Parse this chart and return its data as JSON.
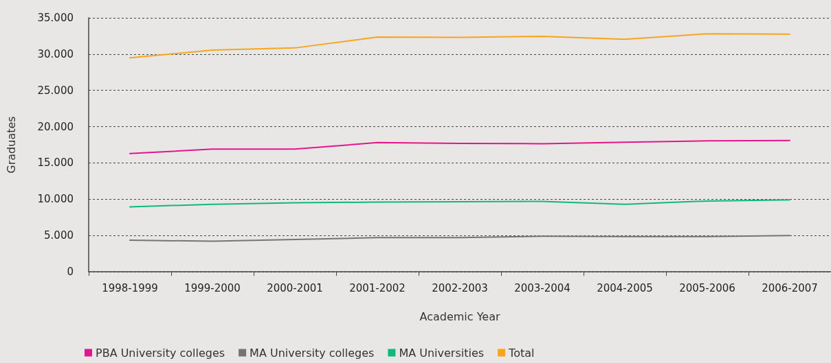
{
  "chart_data": {
    "type": "line",
    "xlabel": "Academic Year",
    "ylabel": "Graduates",
    "categories": [
      "1998-1999",
      "1999-2000",
      "2000-2001",
      "2001-2002",
      "2002-2003",
      "2003-2004",
      "2004-2005",
      "2005-2006",
      "2006-2007"
    ],
    "series": [
      {
        "name": "PBA University colleges",
        "color": "#e5148a",
        "values": [
          16300,
          16900,
          16900,
          17800,
          17700,
          17650,
          17850,
          18050,
          18100
        ]
      },
      {
        "name": "MA University colleges",
        "color": "#757575",
        "values": [
          4350,
          4200,
          4450,
          4700,
          4700,
          4900,
          4850,
          4850,
          5000
        ]
      },
      {
        "name": "MA Universities",
        "color": "#10b87c",
        "values": [
          8950,
          9300,
          9500,
          9600,
          9650,
          9700,
          9300,
          9750,
          9900
        ]
      },
      {
        "name": "Total",
        "color": "#f7a51c",
        "values": [
          29500,
          30550,
          30850,
          32350,
          32300,
          32450,
          32050,
          32800,
          32750
        ]
      }
    ],
    "ylim": [
      0,
      35000
    ],
    "yticks": [
      {
        "value": 0,
        "label": "0"
      },
      {
        "value": 5000,
        "label": "5.000"
      },
      {
        "value": 10000,
        "label": "10.000"
      },
      {
        "value": 15000,
        "label": "15.000"
      },
      {
        "value": 20000,
        "label": "20.000"
      },
      {
        "value": 25000,
        "label": "25.000"
      },
      {
        "value": 30000,
        "label": "30.000"
      },
      {
        "value": 35000,
        "label": "35.000"
      }
    ],
    "grid": "y",
    "legend": "bottom left",
    "marker": "none",
    "line_style": "solid"
  }
}
